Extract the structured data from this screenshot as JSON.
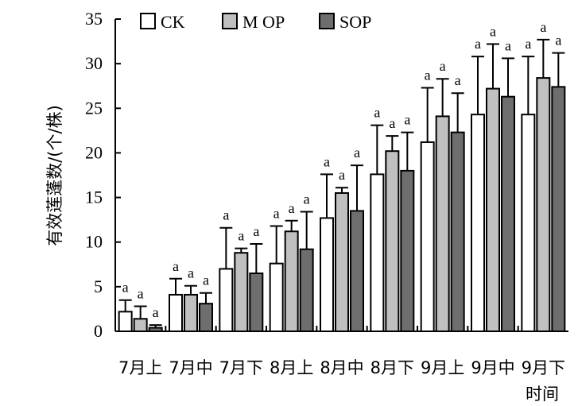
{
  "chart_data": {
    "type": "bar",
    "xlabel": "时间",
    "ylabel": "有效莲蓬数/(个/株)",
    "ylim": [
      0,
      35
    ],
    "yticks": [
      0,
      5,
      10,
      15,
      20,
      25,
      30,
      35
    ],
    "grid": false,
    "legend_position": "top-left",
    "categories": [
      "7月上",
      "7月中",
      "7月下",
      "8月上",
      "8月中",
      "8月下",
      "9月上",
      "9月中",
      "9月下"
    ],
    "series": [
      {
        "name": "CK",
        "color": "#ffffff",
        "values": [
          2.2,
          4.1,
          7.0,
          7.6,
          12.7,
          17.6,
          21.2,
          24.3,
          24.3
        ],
        "errors": [
          1.3,
          1.8,
          4.6,
          4.2,
          4.9,
          5.5,
          6.1,
          6.5,
          6.5
        ],
        "labels": [
          "a",
          "a",
          "a",
          "a",
          "a",
          "a",
          "a",
          "a",
          "a"
        ]
      },
      {
        "name": "M OP",
        "color": "#c0c0c0",
        "values": [
          1.4,
          4.1,
          8.8,
          11.2,
          15.5,
          20.2,
          24.1,
          27.2,
          28.4
        ],
        "errors": [
          1.4,
          1.0,
          0.5,
          1.2,
          0.6,
          1.7,
          4.2,
          5.0,
          4.3
        ],
        "labels": [
          "a",
          "a",
          "a",
          "a",
          "a",
          "a",
          "a",
          "a",
          "a"
        ]
      },
      {
        "name": "SOP",
        "color": "#6e6e6e",
        "values": [
          0.4,
          3.1,
          6.5,
          9.2,
          13.5,
          18.0,
          22.3,
          26.3,
          27.4
        ],
        "errors": [
          0.3,
          1.2,
          3.3,
          4.2,
          5.1,
          4.3,
          4.4,
          4.3,
          3.8
        ],
        "labels": [
          "a",
          "a",
          "a",
          "a",
          "a",
          "a",
          "a",
          "a",
          "a"
        ]
      }
    ]
  }
}
